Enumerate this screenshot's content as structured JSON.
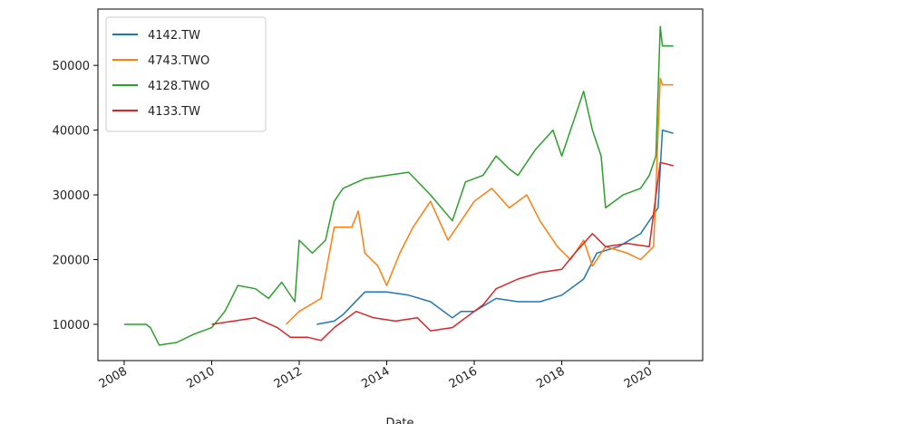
{
  "chart_data": {
    "type": "line",
    "x_label": "Date",
    "xlim": [
      2007.4,
      2021.22
    ],
    "xticks": [
      2008,
      2010,
      2012,
      2014,
      2016,
      2018,
      2020
    ],
    "ylim": [
      4400,
      58700
    ],
    "yticks": [
      10000,
      20000,
      30000,
      40000,
      50000
    ],
    "legend": "upper left",
    "series": [
      {
        "name": "4142.TW",
        "color": "#1f77b4",
        "x": [
          2012.4,
          2012.8,
          2013.0,
          2013.5,
          2014,
          2014.5,
          2015,
          2015.5,
          2015.7,
          2016,
          2016.5,
          2017,
          2017.5,
          2018,
          2018.5,
          2018.8,
          2019.3,
          2019.8,
          2020,
          2020.2,
          2020.3,
          2020.55
        ],
        "values": [
          10000,
          10500,
          11500,
          15000,
          15000,
          14500,
          13500,
          11000,
          12000,
          12000,
          14000,
          13500,
          13500,
          14500,
          17000,
          21000,
          22000,
          24000,
          26000,
          28000,
          40000,
          39500
        ]
      },
      {
        "name": "4743.TWO",
        "color": "#ff7f0e",
        "x": [
          2011.7,
          2012,
          2012.5,
          2012.8,
          2013.2,
          2013.35,
          2013.5,
          2013.8,
          2014,
          2014.3,
          2014.6,
          2015,
          2015.4,
          2015.7,
          2016,
          2016.4,
          2016.8,
          2017.2,
          2017.5,
          2017.9,
          2018.2,
          2018.5,
          2018.7,
          2019,
          2019.5,
          2019.8,
          2020.1,
          2020.25,
          2020.3,
          2020.55
        ],
        "values": [
          10000,
          12000,
          14000,
          25000,
          25000,
          27500,
          21000,
          19000,
          16000,
          21000,
          25000,
          29000,
          23000,
          26000,
          29000,
          31000,
          28000,
          30000,
          26000,
          22000,
          20000,
          23000,
          19000,
          22000,
          21000,
          20000,
          22000,
          48000,
          47000,
          47000
        ]
      },
      {
        "name": "4128.TWO",
        "color": "#2ca02c",
        "x": [
          2008,
          2008.5,
          2008.6,
          2008.8,
          2009.2,
          2009.6,
          2010,
          2010.3,
          2010.6,
          2011,
          2011.3,
          2011.6,
          2011.9,
          2012,
          2012.3,
          2012.6,
          2012.8,
          2013,
          2013.5,
          2014,
          2014.5,
          2015,
          2015.5,
          2015.8,
          2016.2,
          2016.5,
          2016.8,
          2017,
          2017.4,
          2017.8,
          2018,
          2018.3,
          2018.5,
          2018.7,
          2018.9,
          2019,
          2019.4,
          2019.8,
          2020,
          2020.15,
          2020.25,
          2020.3,
          2020.55
        ],
        "values": [
          10000,
          10000,
          9500,
          6800,
          7200,
          8500,
          9500,
          12000,
          16000,
          15500,
          14000,
          16500,
          13500,
          23000,
          21000,
          23000,
          29000,
          31000,
          32500,
          33000,
          33500,
          30000,
          26000,
          32000,
          33000,
          36000,
          34000,
          33000,
          37000,
          40000,
          36000,
          42000,
          46000,
          40000,
          36000,
          28000,
          30000,
          31000,
          33000,
          36000,
          56000,
          53000,
          53000
        ]
      },
      {
        "name": "4133.TW",
        "color": "#d62728",
        "x": [
          2010,
          2010.5,
          2011,
          2011.5,
          2011.8,
          2012.2,
          2012.5,
          2012.8,
          2013.3,
          2013.7,
          2014.2,
          2014.7,
          2015,
          2015.5,
          2015.8,
          2016.2,
          2016.5,
          2017,
          2017.5,
          2018,
          2018.3,
          2018.7,
          2019,
          2019.5,
          2020,
          2020.25,
          2020.55
        ],
        "values": [
          10000,
          10500,
          11000,
          9500,
          8000,
          8000,
          7500,
          9500,
          12000,
          11000,
          10500,
          11000,
          9000,
          9500,
          11000,
          13000,
          15500,
          17000,
          18000,
          18500,
          21000,
          24000,
          22000,
          22500,
          22000,
          35000,
          34500
        ]
      }
    ]
  }
}
